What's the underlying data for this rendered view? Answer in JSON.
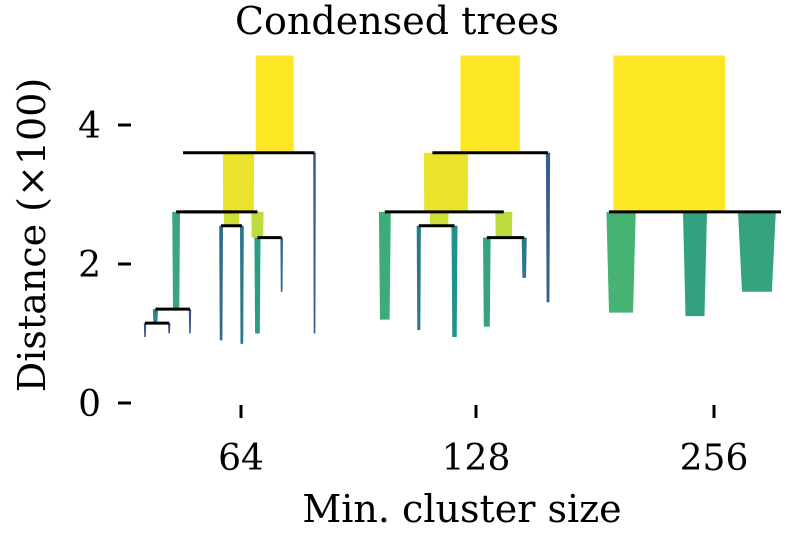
{
  "chart_data": {
    "type": "condensed-tree",
    "title": "Condensed trees",
    "xlabel": "Min. cluster size",
    "ylabel": "Distance (×100)",
    "ylim": [
      0,
      5
    ],
    "yticks": [
      {
        "value": 0,
        "label": "0"
      },
      {
        "value": 2,
        "label": "2"
      },
      {
        "value": 4,
        "label": "4"
      }
    ],
    "categories": [
      "64",
      "128",
      "256"
    ],
    "colormap": "viridis",
    "trees": [
      {
        "min_cluster_size": "64",
        "merges": [
          {
            "distance": 3.6,
            "from": 0.22,
            "to": 0.98
          },
          {
            "distance": 2.75,
            "from": 0.18,
            "to": 0.5
          },
          {
            "distance": 2.75,
            "from": 0.22,
            "to": 0.65
          },
          {
            "distance": 2.55,
            "from": 0.44,
            "to": 0.56
          },
          {
            "distance": 2.38,
            "from": 0.65,
            "to": 0.79
          },
          {
            "distance": 1.35,
            "from": 0.06,
            "to": 0.26
          },
          {
            "distance": 1.15,
            "from": 0.0,
            "to": 0.14
          }
        ],
        "branches": [
          {
            "x": 0.75,
            "top": 5.0,
            "bottom": 3.6,
            "width": 0.22,
            "value": 1.0
          },
          {
            "x": 0.54,
            "top": 3.6,
            "bottom": 2.75,
            "width": 0.18,
            "value": 0.97
          },
          {
            "x": 0.98,
            "top": 3.6,
            "bottom": 1.0,
            "width": 0.015,
            "value": 0.3
          },
          {
            "x": 0.18,
            "top": 2.75,
            "bottom": 1.35,
            "width": 0.045,
            "value": 0.6
          },
          {
            "x": 0.5,
            "top": 2.75,
            "bottom": 2.55,
            "width": 0.09,
            "value": 0.93
          },
          {
            "x": 0.65,
            "top": 2.75,
            "bottom": 2.38,
            "width": 0.07,
            "value": 0.9
          },
          {
            "x": 0.44,
            "top": 2.55,
            "bottom": 0.9,
            "width": 0.022,
            "value": 0.35
          },
          {
            "x": 0.56,
            "top": 2.55,
            "bottom": 0.85,
            "width": 0.022,
            "value": 0.4
          },
          {
            "x": 0.65,
            "top": 2.38,
            "bottom": 1.0,
            "width": 0.035,
            "value": 0.55
          },
          {
            "x": 0.79,
            "top": 2.38,
            "bottom": 1.6,
            "width": 0.015,
            "value": 0.35
          },
          {
            "x": 0.06,
            "top": 1.35,
            "bottom": 1.15,
            "width": 0.03,
            "value": 0.45
          },
          {
            "x": 0.26,
            "top": 1.35,
            "bottom": 1.0,
            "width": 0.012,
            "value": 0.25
          },
          {
            "x": 0.0,
            "top": 1.15,
            "bottom": 0.95,
            "width": 0.012,
            "value": 0.25
          },
          {
            "x": 0.14,
            "top": 1.15,
            "bottom": 1.0,
            "width": 0.012,
            "value": 0.2
          }
        ]
      },
      {
        "min_cluster_size": "128",
        "merges": [
          {
            "distance": 3.6,
            "from": 0.32,
            "to": 1.0
          },
          {
            "distance": 2.75,
            "from": 0.04,
            "to": 0.74
          },
          {
            "distance": 2.55,
            "from": 0.24,
            "to": 0.45
          },
          {
            "distance": 2.38,
            "from": 0.64,
            "to": 0.86
          }
        ],
        "branches": [
          {
            "x": 0.66,
            "top": 5.0,
            "bottom": 3.6,
            "width": 0.35,
            "value": 1.0
          },
          {
            "x": 0.4,
            "top": 3.6,
            "bottom": 2.75,
            "width": 0.26,
            "value": 0.97
          },
          {
            "x": 1.0,
            "top": 3.6,
            "bottom": 1.45,
            "width": 0.025,
            "value": 0.3
          },
          {
            "x": 0.04,
            "top": 2.75,
            "bottom": 1.2,
            "width": 0.07,
            "value": 0.62
          },
          {
            "x": 0.36,
            "top": 2.75,
            "bottom": 2.55,
            "width": 0.11,
            "value": 0.93
          },
          {
            "x": 0.74,
            "top": 2.75,
            "bottom": 2.38,
            "width": 0.1,
            "value": 0.9
          },
          {
            "x": 0.24,
            "top": 2.55,
            "bottom": 1.05,
            "width": 0.025,
            "value": 0.4
          },
          {
            "x": 0.45,
            "top": 2.55,
            "bottom": 0.95,
            "width": 0.035,
            "value": 0.5
          },
          {
            "x": 0.64,
            "top": 2.38,
            "bottom": 1.1,
            "width": 0.045,
            "value": 0.58
          },
          {
            "x": 0.86,
            "top": 2.38,
            "bottom": 1.8,
            "width": 0.03,
            "value": 0.4
          }
        ]
      },
      {
        "min_cluster_size": "256",
        "merges": [
          {
            "distance": 2.75,
            "from": 0.0,
            "to": 1.0
          }
        ],
        "branches": [
          {
            "x": 0.35,
            "top": 5.0,
            "bottom": 2.75,
            "width": 0.65,
            "value": 1.0
          },
          {
            "x": 0.07,
            "top": 2.75,
            "bottom": 1.3,
            "width": 0.17,
            "value": 0.65
          },
          {
            "x": 0.5,
            "top": 2.75,
            "bottom": 1.25,
            "width": 0.14,
            "value": 0.57
          },
          {
            "x": 0.86,
            "top": 2.75,
            "bottom": 1.6,
            "width": 0.22,
            "value": 0.58
          }
        ]
      }
    ]
  }
}
